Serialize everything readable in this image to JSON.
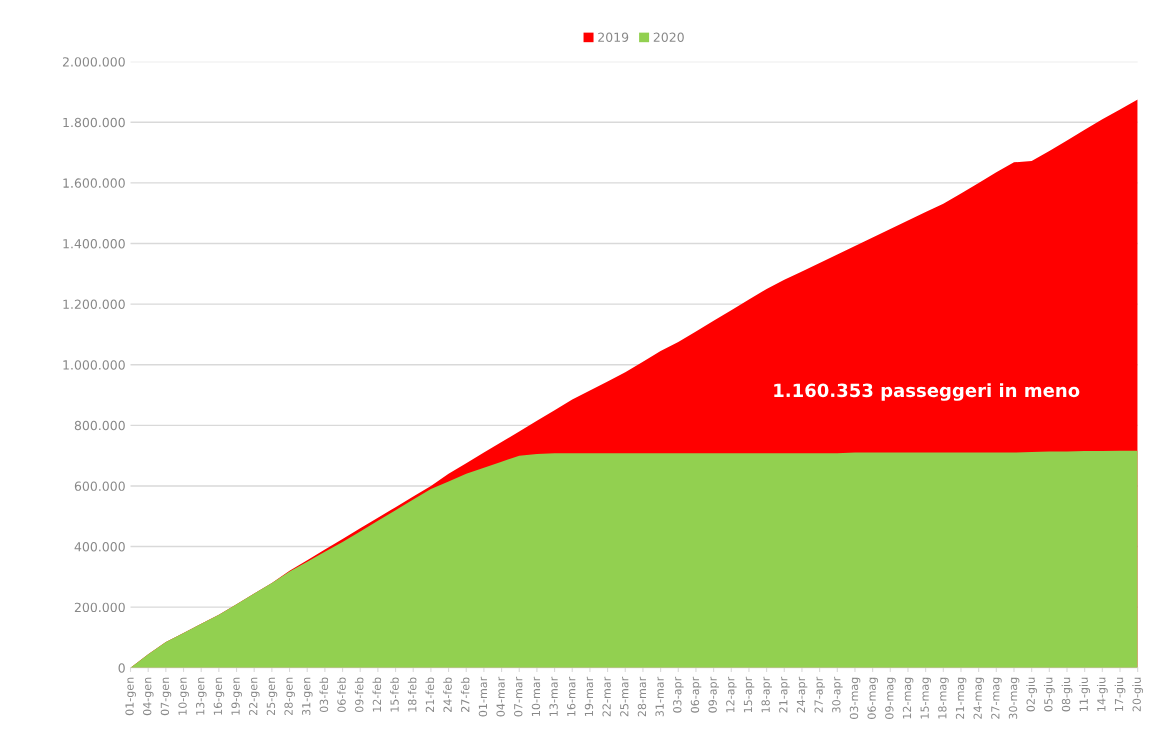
{
  "chart_data": {
    "type": "area",
    "categories": [
      "01-gen",
      "04-gen",
      "07-gen",
      "10-gen",
      "13-gen",
      "16-gen",
      "19-gen",
      "22-gen",
      "25-gen",
      "28-gen",
      "31-gen",
      "03-feb",
      "06-feb",
      "09-feb",
      "12-feb",
      "15-feb",
      "18-feb",
      "21-feb",
      "24-feb",
      "27-feb",
      "01-mar",
      "04-mar",
      "07-mar",
      "10-mar",
      "13-mar",
      "16-mar",
      "19-mar",
      "22-mar",
      "25-mar",
      "28-mar",
      "31-mar",
      "03-apr",
      "06-apr",
      "09-apr",
      "12-apr",
      "15-apr",
      "18-apr",
      "21-apr",
      "24-apr",
      "27-apr",
      "30-apr",
      "03-mag",
      "06-mag",
      "09-mag",
      "12-mag",
      "15-mag",
      "18-mag",
      "21-mag",
      "24-mag",
      "27-mag",
      "30-mag",
      "02-giu",
      "05-giu",
      "08-giu",
      "11-giu",
      "14-giu",
      "17-giu",
      "20-giu"
    ],
    "series": [
      {
        "name": "2019",
        "color": "#ff0000",
        "values": [
          0,
          45000,
          85000,
          115000,
          145000,
          175000,
          210000,
          245000,
          280000,
          320000,
          355000,
          390000,
          425000,
          460000,
          495000,
          530000,
          565000,
          600000,
          640000,
          675000,
          710000,
          745000,
          780000,
          815000,
          850000,
          885000,
          915000,
          945000,
          975000,
          1010000,
          1045000,
          1075000,
          1110000,
          1145000,
          1180000,
          1215000,
          1250000,
          1280000,
          1308000,
          1336000,
          1364000,
          1392000,
          1420000,
          1448000,
          1476000,
          1504000,
          1531000,
          1565000,
          1600000,
          1635000,
          1668000,
          1672000,
          1705000,
          1740000,
          1775000,
          1810000,
          1842000,
          1875000
        ]
      },
      {
        "name": "2020",
        "color": "#92d050",
        "values": [
          0,
          45000,
          85000,
          115000,
          145000,
          175000,
          210000,
          245000,
          280000,
          318000,
          350000,
          383000,
          415000,
          450000,
          485000,
          520000,
          555000,
          590000,
          615000,
          640000,
          660000,
          680000,
          700000,
          705000,
          708000,
          708000,
          708000,
          708000,
          708000,
          708000,
          708000,
          708000,
          708000,
          708000,
          708000,
          708000,
          708000,
          708000,
          708000,
          708000,
          708000,
          710000,
          710000,
          710000,
          710000,
          710000,
          710000,
          710000,
          710000,
          710000,
          710000,
          712000,
          714000,
          714000,
          715000,
          715000,
          716000,
          716000
        ]
      }
    ],
    "ylim": [
      0,
      2000000
    ],
    "yticks": [
      {
        "value": 0,
        "label": "0"
      },
      {
        "value": 200000,
        "label": "200.000"
      },
      {
        "value": 400000,
        "label": "400.000"
      },
      {
        "value": 600000,
        "label": "600.000"
      },
      {
        "value": 800000,
        "label": "800.000"
      },
      {
        "value": 1000000,
        "label": "1.000.000"
      },
      {
        "value": 1200000,
        "label": "1.200.000"
      },
      {
        "value": 1400000,
        "label": "1.400.000"
      },
      {
        "value": 1600000,
        "label": "1.600.000"
      },
      {
        "value": 1800000,
        "label": "1.800.000"
      },
      {
        "value": 2000000,
        "label": "2.000.000"
      }
    ],
    "grid": "y",
    "legend": "top",
    "annotations": [
      "1.160.353 passeggeri in meno"
    ]
  }
}
